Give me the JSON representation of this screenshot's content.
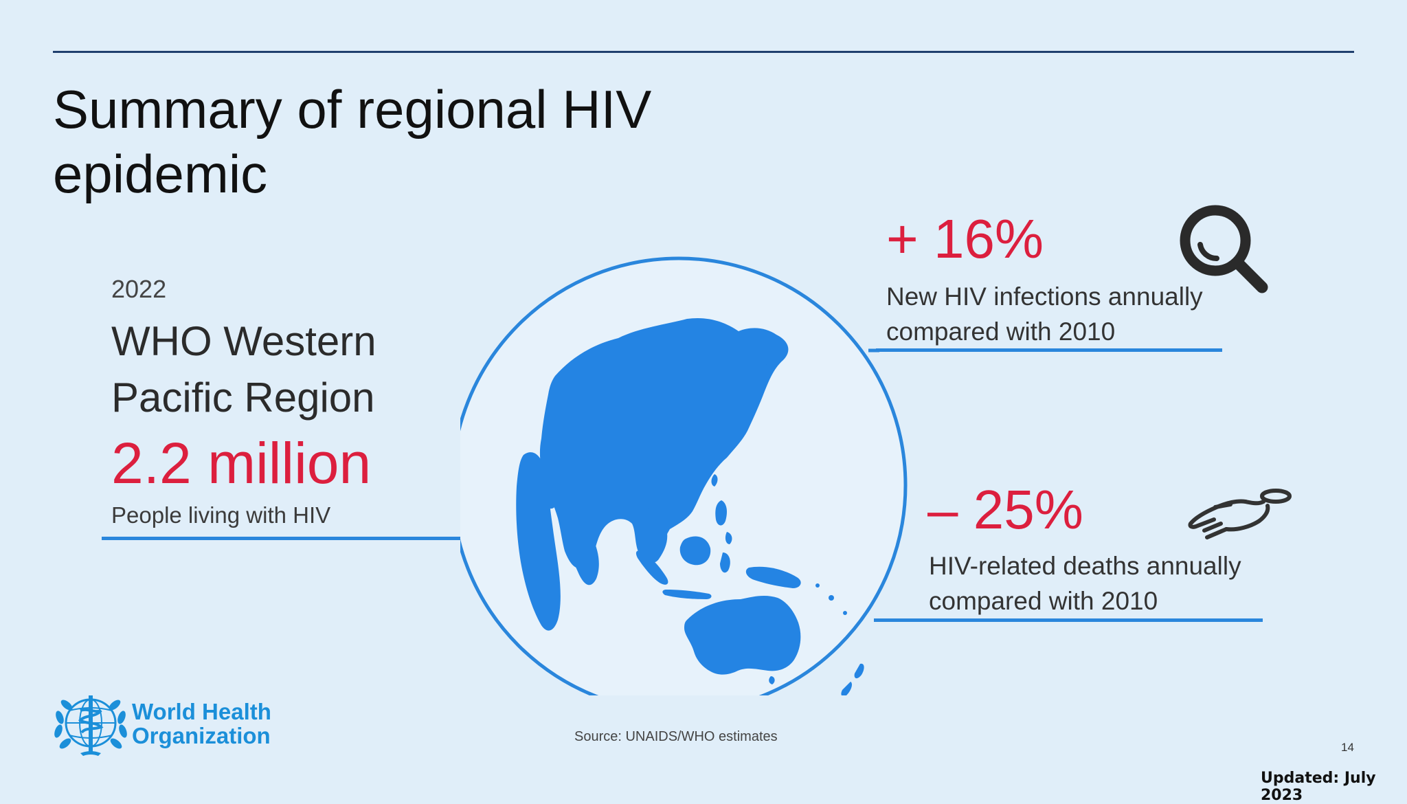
{
  "slide": {
    "title": "Summary of regional HIV epidemic",
    "source": "Source: UNAIDS/WHO estimates",
    "page_number": "14",
    "updated": "Updated: July 2023"
  },
  "left_panel": {
    "year": "2022",
    "region": "WHO Western Pacific Region",
    "stat": "2.2 million",
    "caption": "People living with HIV"
  },
  "right_panel": {
    "infections": {
      "stat": "+ 16%",
      "caption": "New HIV infections annually compared with 2010",
      "icon": "magnifier-icon"
    },
    "deaths": {
      "stat": "– 25%",
      "caption": "HIV-related deaths annually compared with 2010",
      "icon": "hand-icon"
    }
  },
  "logo": {
    "name": "World Health Organization",
    "line1": "World Health",
    "line2": "Organization"
  },
  "colors": {
    "accent_red": "#dc1f3e",
    "accent_blue": "#2a86dc",
    "background": "#e0eef9",
    "who_blue": "#1b8fd9"
  }
}
